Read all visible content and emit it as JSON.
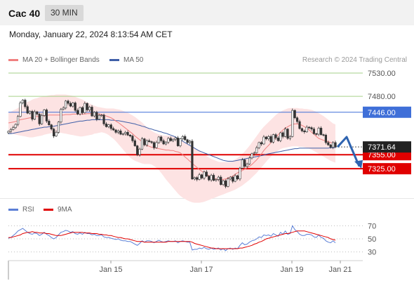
{
  "header": {
    "instrument": "Cac 40",
    "interval": "30 MIN",
    "datetime": "Monday, January 22, 2024 8:13:54 AM CET"
  },
  "legend": {
    "ma20": "MA 20 + Bollinger Bands",
    "ma50": "MA 50",
    "rsi": "RSI",
    "ma9": "9MA",
    "copyright": "Research © 2024 Trading Central"
  },
  "colors": {
    "candle_up": "#2e7d32",
    "candle_down": "#c62828",
    "ma20": "#f08080",
    "ma50": "#3f5fa8",
    "bollinger_fill": "#fde3e3",
    "resistance_green": "#a6d28a",
    "pivot_blue": "#3f6fd8",
    "support_red": "#e00000",
    "last_price_bg": "#222222",
    "rsi_line": "#5b7fd6",
    "rsi_ma": "#e00000",
    "scenario_arrow": "#2f64b0"
  },
  "chart_data": [
    {
      "type": "candlestick",
      "title": "Cac 40",
      "ylim": [
        7262,
        7548
      ],
      "x_ticks": [
        "Jan 15",
        "Jan 17",
        "Jan 19",
        "Jan 21"
      ],
      "last_price": 7371.64,
      "last_price_label": "7371.64",
      "levels": [
        {
          "value": 7530.0,
          "label": "7530.00",
          "kind": "resistance"
        },
        {
          "value": 7480.0,
          "label": "7480.00",
          "kind": "resistance"
        },
        {
          "value": 7446.0,
          "label": "7446.00",
          "kind": "pivot"
        },
        {
          "value": 7355.0,
          "label": "7355.00",
          "kind": "support"
        },
        {
          "value": 7325.0,
          "label": "7325.00",
          "kind": "support"
        }
      ],
      "close": [
        7405,
        7409,
        7413,
        7420,
        7437,
        7466,
        7472,
        7458,
        7444,
        7448,
        7431,
        7447,
        7442,
        7421,
        7439,
        7451,
        7427,
        7419,
        7410,
        7395,
        7403,
        7425,
        7452,
        7455,
        7470,
        7465,
        7459,
        7466,
        7450,
        7442,
        7456,
        7445,
        7465,
        7451,
        7457,
        7438,
        7446,
        7431,
        7439,
        7440,
        7421,
        7415,
        7419,
        7411,
        7408,
        7403,
        7406,
        7399,
        7400,
        7403,
        7397,
        7395,
        7385,
        7374,
        7355,
        7367,
        7389,
        7376,
        7385,
        7383,
        7381,
        7370,
        7381,
        7393,
        7385,
        7378,
        7382,
        7390,
        7385,
        7388,
        7391,
        7374,
        7389,
        7394,
        7387,
        7381,
        7384,
        7303,
        7306,
        7302,
        7312,
        7305,
        7318,
        7309,
        7301,
        7311,
        7300,
        7302,
        7307,
        7291,
        7299,
        7287,
        7303,
        7307,
        7298,
        7310,
        7303,
        7326,
        7344,
        7330,
        7335,
        7348,
        7357,
        7359,
        7370,
        7381,
        7378,
        7393,
        7389,
        7394,
        7382,
        7398,
        7391,
        7385,
        7402,
        7394,
        7410,
        7390,
        7394,
        7450,
        7434,
        7426,
        7411,
        7406,
        7404,
        7414,
        7413,
        7410,
        7400,
        7399,
        7412,
        7398,
        7397,
        7381,
        7376,
        7371,
        7381,
        7371.64
      ],
      "ma20": [
        7423,
        7424,
        7425,
        7426,
        7428,
        7430,
        7431,
        7432,
        7433,
        7434,
        7435,
        7436,
        7437,
        7437,
        7438,
        7439,
        7439,
        7440,
        7440,
        7440,
        7440,
        7440,
        7440,
        7440,
        7441,
        7441,
        7441,
        7442,
        7442,
        7442,
        7442,
        7442,
        7442,
        7443,
        7443,
        7443,
        7443,
        7442,
        7442,
        7441,
        7440,
        7438,
        7436,
        7434,
        7431,
        7427,
        7424,
        7420,
        7416,
        7412,
        7408,
        7404,
        7400,
        7395,
        7391,
        7387,
        7383,
        7379,
        7375,
        7373,
        7371,
        7370,
        7369,
        7368,
        7367,
        7366,
        7365,
        7365,
        7364,
        7364,
        7362,
        7361,
        7359,
        7355,
        7350,
        7346,
        7341,
        7337,
        7332,
        7328,
        7323,
        7320,
        7316,
        7313,
        7310,
        7307,
        7304,
        7303,
        7302,
        7302,
        7302,
        7303,
        7305,
        7307,
        7309,
        7313,
        7316,
        7319,
        7321,
        7324,
        7327,
        7330,
        7334,
        7339,
        7344,
        7350,
        7357,
        7364,
        7370,
        7375,
        7381,
        7387,
        7392,
        7398,
        7403,
        7408,
        7412,
        7415,
        7418,
        7420,
        7421,
        7421,
        7420,
        7418,
        7415,
        7412,
        7408,
        7403,
        7399,
        7394,
        7390,
        7388,
        7386,
        7384,
        7383,
        7381,
        7380,
        7380
      ],
      "bb_upper": [
        7445,
        7447,
        7450,
        7452,
        7455,
        7458,
        7462,
        7465,
        7468,
        7470,
        7473,
        7475,
        7476,
        7478,
        7479,
        7480,
        7481,
        7482,
        7483,
        7483,
        7484,
        7484,
        7484,
        7484,
        7484,
        7483,
        7482,
        7481,
        7479,
        7477,
        7475,
        7473,
        7470,
        7467,
        7465,
        7462,
        7460,
        7458,
        7457,
        7456,
        7455,
        7454,
        7454,
        7454,
        7454,
        7453,
        7452,
        7451,
        7449,
        7447,
        7445,
        7442,
        7439,
        7436,
        7432,
        7428,
        7424,
        7419,
        7414,
        7410,
        7406,
        7403,
        7401,
        7399,
        7397,
        7396,
        7396,
        7396,
        7395,
        7394,
        7392,
        7389,
        7387,
        7384,
        7381,
        7378,
        7375,
        7372,
        7369,
        7366,
        7362,
        7359,
        7355,
        7352,
        7349,
        7346,
        7344,
        7342,
        7340,
        7339,
        7339,
        7339,
        7339,
        7340,
        7342,
        7345,
        7348,
        7352,
        7357,
        7362,
        7368,
        7374,
        7381,
        7388,
        7395,
        7402,
        7409,
        7415,
        7420,
        7425,
        7430,
        7435,
        7440,
        7444,
        7447,
        7450,
        7452,
        7454,
        7455,
        7455,
        7455,
        7455,
        7454,
        7454,
        7453,
        7453,
        7452,
        7451,
        7449,
        7447,
        7444,
        7441,
        7438,
        7434,
        7430,
        7426,
        7422,
        7420
      ],
      "bb_lower": [
        7402,
        7401,
        7399,
        7398,
        7397,
        7396,
        7395,
        7394,
        7393,
        7392,
        7392,
        7393,
        7394,
        7395,
        7396,
        7398,
        7399,
        7400,
        7401,
        7402,
        7402,
        7402,
        7402,
        7401,
        7400,
        7399,
        7398,
        7397,
        7396,
        7395,
        7394,
        7394,
        7395,
        7396,
        7397,
        7398,
        7400,
        7401,
        7402,
        7403,
        7402,
        7400,
        7397,
        7393,
        7389,
        7384,
        7378,
        7372,
        7366,
        7360,
        7354,
        7349,
        7345,
        7342,
        7340,
        7338,
        7336,
        7335,
        7335,
        7335,
        7334,
        7331,
        7327,
        7322,
        7316,
        7309,
        7302,
        7296,
        7290,
        7284,
        7278,
        7272,
        7267,
        7263,
        7260,
        7257,
        7255,
        7253,
        7252,
        7252,
        7252,
        7253,
        7254,
        7256,
        7258,
        7260,
        7262,
        7264,
        7266,
        7268,
        7270,
        7272,
        7274,
        7276,
        7278,
        7280,
        7283,
        7286,
        7289,
        7293,
        7297,
        7301,
        7306,
        7311,
        7316,
        7322,
        7328,
        7334,
        7340,
        7346,
        7351,
        7356,
        7360,
        7364,
        7367,
        7369,
        7370,
        7371,
        7372,
        7373,
        7373,
        7373,
        7372,
        7372,
        7371,
        7370,
        7368,
        7366,
        7363,
        7360,
        7357,
        7354,
        7351,
        7348,
        7345,
        7342,
        7340,
        7338
      ],
      "ma50": [
        7400,
        7400,
        7401,
        7402,
        7403,
        7404,
        7405,
        7406,
        7407,
        7408,
        7409,
        7410,
        7411,
        7412,
        7413,
        7414,
        7414,
        7415,
        7416,
        7416,
        7417,
        7418,
        7419,
        7420,
        7421,
        7422,
        7423,
        7424,
        7425,
        7426,
        7427,
        7427,
        7428,
        7429,
        7429,
        7430,
        7430,
        7430,
        7430,
        7430,
        7430,
        7430,
        7430,
        7429,
        7429,
        7428,
        7428,
        7427,
        7426,
        7425,
        7424,
        7423,
        7422,
        7421,
        7419,
        7418,
        7416,
        7415,
        7413,
        7411,
        7410,
        7408,
        7407,
        7405,
        7404,
        7402,
        7401,
        7399,
        7397,
        7395,
        7393,
        7390,
        7387,
        7384,
        7381,
        7378,
        7375,
        7372,
        7369,
        7366,
        7363,
        7361,
        7359,
        7357,
        7355,
        7353,
        7351,
        7349,
        7347,
        7345,
        7343,
        7342,
        7341,
        7341,
        7341,
        7342,
        7343,
        7344,
        7345,
        7346,
        7347,
        7348,
        7349,
        7350,
        7351,
        7352,
        7353,
        7354,
        7356,
        7357,
        7358,
        7359,
        7360,
        7361,
        7362,
        7363,
        7364,
        7365,
        7366,
        7367,
        7368,
        7368,
        7369,
        7369,
        7369,
        7369,
        7369,
        7369,
        7369,
        7369,
        7369,
        7369,
        7369,
        7369,
        7369,
        7370,
        7370,
        7370
      ],
      "scenario_path": [
        7371.64,
        7393,
        7330
      ]
    },
    {
      "type": "line",
      "title": "RSI",
      "ylim": [
        20,
        80
      ],
      "y_ticks": [
        70,
        50,
        30
      ],
      "y_tick_labels": [
        "70",
        "50",
        "30"
      ],
      "x_ticks": [
        "Jan 15",
        "Jan 17",
        "Jan 19",
        "Jan 21"
      ],
      "series": [
        {
          "name": "RSI",
          "values": [
            51,
            52,
            55,
            58,
            62,
            64,
            66,
            63,
            60,
            58,
            57,
            59,
            58,
            55,
            57,
            60,
            57,
            55,
            52,
            50,
            52,
            56,
            60,
            61,
            63,
            62,
            60,
            61,
            58,
            57,
            59,
            57,
            60,
            58,
            58,
            56,
            57,
            55,
            55,
            56,
            53,
            52,
            52,
            51,
            50,
            49,
            50,
            48,
            47,
            47,
            46,
            46,
            44,
            42,
            40,
            43,
            47,
            45,
            47,
            47,
            46,
            44,
            46,
            48,
            46,
            45,
            46,
            47,
            46,
            46,
            47,
            44,
            46,
            47,
            46,
            45,
            45,
            33,
            34,
            34,
            36,
            35,
            37,
            35,
            34,
            36,
            34,
            35,
            36,
            33,
            35,
            32,
            35,
            36,
            34,
            36,
            35,
            40,
            44,
            41,
            42,
            45,
            47,
            48,
            50,
            53,
            52,
            56,
            55,
            56,
            54,
            58,
            56,
            54,
            60,
            57,
            62,
            57,
            58,
            70,
            64,
            61,
            57,
            55,
            55,
            57,
            57,
            56,
            53,
            52,
            56,
            52,
            51,
            47,
            45,
            44,
            47,
            44
          ]
        },
        {
          "name": "9MA",
          "values": [
            52,
            52,
            53,
            54,
            55,
            56,
            58,
            59,
            60,
            60,
            61,
            60,
            60,
            59,
            59,
            59,
            58,
            58,
            57,
            56,
            55,
            55,
            55,
            56,
            57,
            58,
            59,
            60,
            60,
            60,
            60,
            60,
            59,
            59,
            59,
            58,
            58,
            58,
            57,
            57,
            56,
            56,
            55,
            55,
            54,
            53,
            52,
            52,
            51,
            50,
            50,
            49,
            48,
            47,
            46,
            46,
            46,
            45,
            45,
            45,
            45,
            45,
            45,
            45,
            45,
            45,
            45,
            46,
            46,
            46,
            46,
            46,
            46,
            46,
            46,
            46,
            46,
            45,
            43,
            42,
            41,
            40,
            39,
            38,
            37,
            36,
            36,
            35,
            35,
            35,
            35,
            35,
            35,
            35,
            35,
            35,
            35,
            36,
            36,
            37,
            38,
            39,
            40,
            42,
            43,
            45,
            46,
            48,
            50,
            51,
            52,
            53,
            54,
            55,
            56,
            57,
            58,
            58,
            59,
            60,
            61,
            62,
            62,
            62,
            62,
            61,
            60,
            59,
            58,
            57,
            56,
            55,
            54,
            53,
            52,
            50,
            49,
            48
          ]
        }
      ]
    }
  ]
}
